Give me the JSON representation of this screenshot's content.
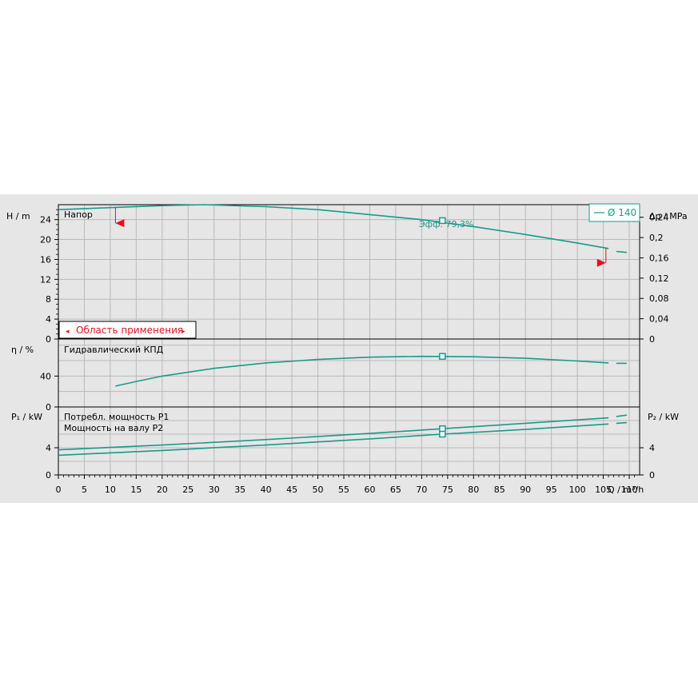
{
  "chart_data": {
    "type": "line",
    "accent": "#1a9a8a",
    "warn": "#e0141e",
    "legend": "Ø 140",
    "x": {
      "label": "Q / m³/h",
      "ticks": [
        0,
        5,
        10,
        15,
        20,
        25,
        30,
        35,
        40,
        45,
        50,
        55,
        60,
        65,
        70,
        75,
        80,
        85,
        90,
        95,
        100,
        105,
        110
      ],
      "range": [
        0,
        112
      ]
    },
    "head": {
      "title": "Напор",
      "ylabel": "H / m",
      "ylabel_right": "Δp / MPa",
      "ylim": [
        0,
        27
      ],
      "ticks": [
        0,
        4,
        8,
        12,
        16,
        20,
        24
      ],
      "ticks_right": [
        "0",
        "0,04",
        "0,08",
        "0,12",
        "0,16",
        "0,2",
        "0,24"
      ],
      "ticks_right_values": [
        0,
        4.08,
        8.16,
        12.24,
        16.31,
        20.39,
        24.47
      ],
      "curve": [
        [
          0,
          26
        ],
        [
          10,
          26.4
        ],
        [
          20,
          26.8
        ],
        [
          28,
          27
        ],
        [
          40,
          26.6
        ],
        [
          50,
          26
        ],
        [
          60,
          25
        ],
        [
          70,
          24
        ],
        [
          80,
          22.6
        ],
        [
          90,
          21
        ],
        [
          100,
          19.3
        ],
        [
          106,
          18.2
        ]
      ],
      "ext": [
        [
          107.5,
          17.6
        ],
        [
          109.5,
          17.4
        ]
      ],
      "annotation": "Эфф. 79,3%",
      "op_point": [
        74,
        23.8
      ],
      "range_label": "Область применения",
      "range_min": 11,
      "range_max": 105.5
    },
    "eff": {
      "title": "Гидравлический КПД",
      "ylabel": "η / %",
      "ylim": [
        0,
        88
      ],
      "ticks": [
        0,
        40
      ],
      "curve": [
        [
          11,
          27
        ],
        [
          15,
          33
        ],
        [
          20,
          40
        ],
        [
          30,
          50
        ],
        [
          40,
          57
        ],
        [
          50,
          61.5
        ],
        [
          60,
          64.5
        ],
        [
          70,
          65.5
        ],
        [
          80,
          65
        ],
        [
          90,
          63
        ],
        [
          100,
          59.5
        ],
        [
          106,
          57
        ]
      ],
      "ext": [
        [
          107.5,
          56.5
        ],
        [
          109.5,
          56.5
        ]
      ],
      "op_point": [
        74,
        65.5
      ]
    },
    "power": {
      "title_p1": "Потребл. мощность P1",
      "title_p2": "Мощность на валу P2",
      "ylabel": "P₁ / kW",
      "ylabel_right": "P₂ / kW",
      "ylim": [
        0,
        10
      ],
      "ticks": [
        0,
        4
      ],
      "p1": [
        [
          0,
          3.7
        ],
        [
          20,
          4.4
        ],
        [
          40,
          5.2
        ],
        [
          60,
          6.1
        ],
        [
          74,
          6.8
        ],
        [
          90,
          7.6
        ],
        [
          106,
          8.4
        ]
      ],
      "p1_ext": [
        [
          107.5,
          8.6
        ],
        [
          109.5,
          8.8
        ]
      ],
      "p2": [
        [
          0,
          2.9
        ],
        [
          20,
          3.6
        ],
        [
          40,
          4.4
        ],
        [
          60,
          5.3
        ],
        [
          74,
          6.0
        ],
        [
          90,
          6.7
        ],
        [
          106,
          7.5
        ]
      ],
      "p2_ext": [
        [
          107.5,
          7.6
        ],
        [
          109.5,
          7.7
        ]
      ],
      "op_p1": [
        74,
        6.8
      ],
      "op_p2": [
        74,
        6.0
      ]
    }
  }
}
